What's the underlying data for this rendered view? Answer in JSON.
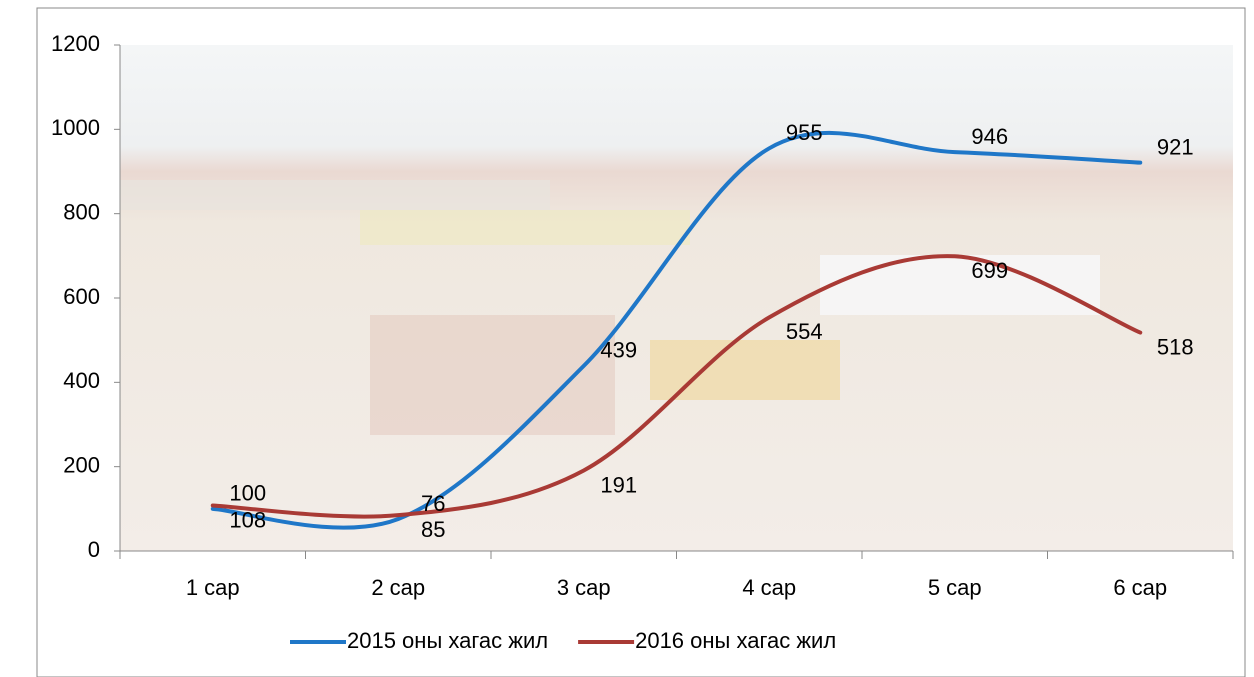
{
  "chart_data": {
    "type": "line",
    "categories": [
      "1 сар",
      "2 сар",
      "3 сар",
      "4 сар",
      "5 сар",
      "6 сар"
    ],
    "series": [
      {
        "name": "2015 оны хагас жил",
        "color": "#1f77c8",
        "values": [
          100,
          76,
          439,
          955,
          946,
          921
        ]
      },
      {
        "name": "2016 оны хагас жил",
        "color": "#a93a35",
        "values": [
          108,
          85,
          191,
          554,
          699,
          518
        ]
      }
    ],
    "ylim": [
      0,
      1200
    ],
    "yticks": [
      0,
      200,
      400,
      600,
      800,
      1000,
      1200
    ],
    "smooth": true,
    "legend": "bottom"
  }
}
